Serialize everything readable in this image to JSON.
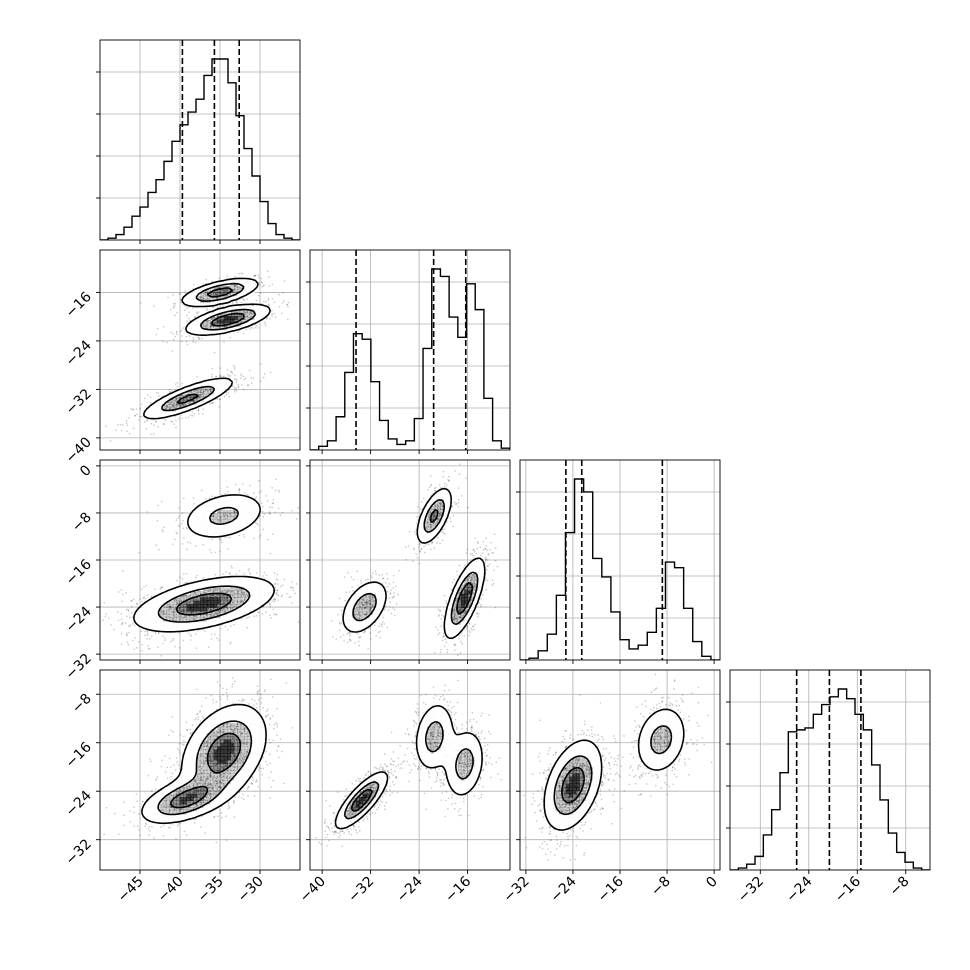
{
  "chart_data": {
    "type": "corner",
    "title": "",
    "n_params": 4,
    "params": [
      {
        "label": "",
        "range": [
          -50,
          -25
        ],
        "ticks": [
          -45,
          -40,
          -35,
          -30
        ],
        "tick_labels": [
          "−45",
          "−40",
          "−35",
          "−30"
        ],
        "quantiles": [
          -39.7,
          -35.7,
          -32.6
        ],
        "hist": [
          0,
          0.01,
          0.03,
          0.07,
          0.13,
          0.18,
          0.26,
          0.33,
          0.43,
          0.54,
          0.63,
          0.7,
          0.77,
          0.9,
          0.99,
          0.99,
          0.86,
          0.68,
          0.5,
          0.35,
          0.21,
          0.09,
          0.03,
          0.01,
          0
        ]
      },
      {
        "label": "",
        "range": [
          -42,
          -9
        ],
        "ticks": [
          -40,
          -32,
          -24,
          -16
        ],
        "tick_labels": [
          "−40",
          "−32",
          "−24",
          "−16"
        ],
        "quantiles": [
          -34.4,
          -21.6,
          -16.3
        ],
        "hist": [
          0,
          0.02,
          0.05,
          0.18,
          0.42,
          0.63,
          0.6,
          0.37,
          0.16,
          0.06,
          0.03,
          0.05,
          0.17,
          0.55,
          0.98,
          0.94,
          0.72,
          0.61,
          0.9,
          0.76,
          0.28,
          0.05,
          0.01
        ]
      },
      {
        "label": "",
        "range": [
          -33,
          1
        ],
        "ticks": [
          -32,
          -24,
          -16,
          -8,
          0
        ],
        "tick_labels": [
          "−32",
          "−24",
          "−16",
          "−8",
          "0"
        ],
        "quantiles": [
          -25.2,
          -22.5,
          -8.8
        ],
        "hist": [
          0,
          0.01,
          0.05,
          0.14,
          0.35,
          0.69,
          0.98,
          0.91,
          0.55,
          0.45,
          0.26,
          0.11,
          0.06,
          0.08,
          0.15,
          0.28,
          0.53,
          0.5,
          0.28,
          0.1,
          0.02,
          0
        ]
      },
      {
        "label": "",
        "range": [
          -37,
          -4
        ],
        "ticks": [
          -32,
          -24,
          -16,
          -8
        ],
        "tick_labels": [
          "−32",
          "−24",
          "−16",
          "−8"
        ],
        "quantiles": [
          -26.0,
          -20.6,
          -15.4
        ],
        "hist": [
          0,
          0.01,
          0.03,
          0.07,
          0.18,
          0.31,
          0.5,
          0.71,
          0.72,
          0.73,
          0.8,
          0.85,
          0.89,
          0.93,
          0.88,
          0.8,
          0.72,
          0.54,
          0.36,
          0.19,
          0.09,
          0.04,
          0.01,
          0
        ]
      }
    ],
    "pairs": [
      {
        "row": 1,
        "col": 0,
        "modes": [
          {
            "center": [
              -35,
              -16
            ],
            "spread": [
              2.5,
              1.2
            ],
            "rho": 0.6,
            "weight": 1.0
          },
          {
            "center": [
              -34,
              -20.5
            ],
            "spread": [
              2.7,
              1.3
            ],
            "rho": 0.6,
            "weight": 1.1
          },
          {
            "center": [
              -39,
              -33.5
            ],
            "spread": [
              3.0,
              1.8
            ],
            "rho": 0.8,
            "weight": 0.9
          }
        ]
      },
      {
        "row": 2,
        "col": 0,
        "modes": [
          {
            "center": [
              -34.5,
              -8.5
            ],
            "spread": [
              2.8,
              2.2
            ],
            "rho": 0.3,
            "weight": 0.55
          },
          {
            "center": [
              -37,
              -23.5
            ],
            "spread": [
              4.5,
              2.4
            ],
            "rho": 0.5,
            "weight": 1.0
          }
        ]
      },
      {
        "row": 2,
        "col": 1,
        "modes": [
          {
            "center": [
              -21.5,
              -8.5
            ],
            "spread": [
              1.5,
              2.5
            ],
            "rho": 0.6,
            "weight": 0.7
          },
          {
            "center": [
              -16.5,
              -22.5
            ],
            "spread": [
              1.7,
              3.5
            ],
            "rho": 0.7,
            "weight": 0.85
          },
          {
            "center": [
              -33,
              -24
            ],
            "spread": [
              2.0,
              2.4
            ],
            "rho": 0.45,
            "weight": 0.6
          }
        ]
      },
      {
        "row": 3,
        "col": 0,
        "modes": [
          {
            "center": [
              -34.5,
              -17.5
            ],
            "spread": [
              2.7,
              4.0
            ],
            "rho": 0.35,
            "weight": 0.8
          },
          {
            "center": [
              -39.5,
              -25.5
            ],
            "spread": [
              2.8,
              2.0
            ],
            "rho": 0.5,
            "weight": 0.7
          }
        ]
      },
      {
        "row": 3,
        "col": 1,
        "modes": [
          {
            "center": [
              -33.5,
              -25.5
            ],
            "spread": [
              2.2,
              2.4
            ],
            "rho": 0.8,
            "weight": 0.8
          },
          {
            "center": [
              -21.5,
              -15
            ],
            "spread": [
              1.7,
              3.0
            ],
            "rho": 0.2,
            "weight": 0.5
          },
          {
            "center": [
              -16.5,
              -19.5
            ],
            "spread": [
              1.7,
              3.0
            ],
            "rho": 0.2,
            "weight": 0.5
          }
        ]
      },
      {
        "row": 3,
        "col": 2,
        "modes": [
          {
            "center": [
              -24,
              -23
            ],
            "spread": [
              2.5,
              3.8
            ],
            "rho": 0.4,
            "weight": 1.0
          },
          {
            "center": [
              -9,
              -15.5
            ],
            "spread": [
              2.3,
              3.0
            ],
            "rho": 0.2,
            "weight": 0.6
          }
        ]
      }
    ],
    "contour_levels": [
      0.15,
      0.45,
      0.75
    ],
    "grid": true,
    "legend": "none"
  }
}
